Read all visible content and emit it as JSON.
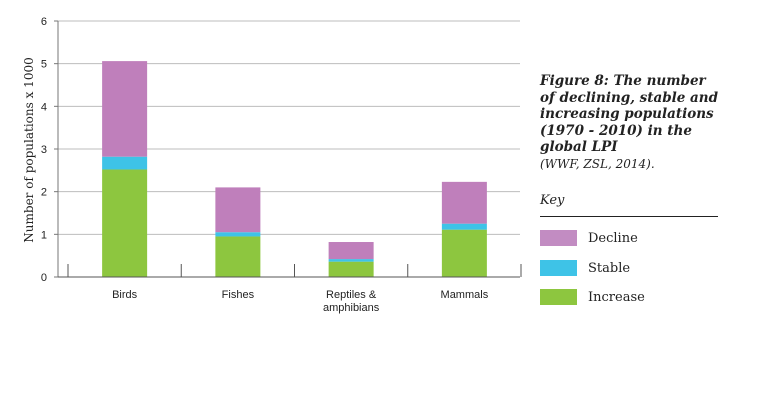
{
  "chart_data": {
    "type": "bar",
    "stacked": true,
    "categories": [
      "Birds",
      "Fishes",
      "Reptiles & amphibians",
      "Mammals"
    ],
    "series": [
      {
        "name": "Increase",
        "color": "#8dc63f",
        "values": [
          2.52,
          0.95,
          0.36,
          1.11
        ]
      },
      {
        "name": "Stable",
        "color": "#3ec3e7",
        "values": [
          0.3,
          0.1,
          0.06,
          0.14
        ]
      },
      {
        "name": "Decline",
        "color": "#bf7fbb",
        "values": [
          2.24,
          1.05,
          0.4,
          0.98
        ]
      }
    ],
    "ylabel": "Number of populations  x 1000",
    "ylim": [
      0,
      6
    ],
    "yticks": [
      0,
      1,
      2,
      3,
      4,
      5,
      6
    ],
    "grid": true,
    "legend_placement": "right"
  },
  "caption": {
    "title_lines": [
      "Figure 8: The number",
      "of declining, stable and",
      "increasing populations",
      "(1970 - 2010) in the",
      "global LPI"
    ],
    "source": "(WWF, ZSL, 2014)."
  },
  "key": {
    "title": "Key",
    "items": [
      {
        "label": "Decline",
        "color": "#c28cc2"
      },
      {
        "label": "Stable",
        "color": "#3ec3e7"
      },
      {
        "label": "Increase",
        "color": "#8dc63f"
      }
    ]
  }
}
